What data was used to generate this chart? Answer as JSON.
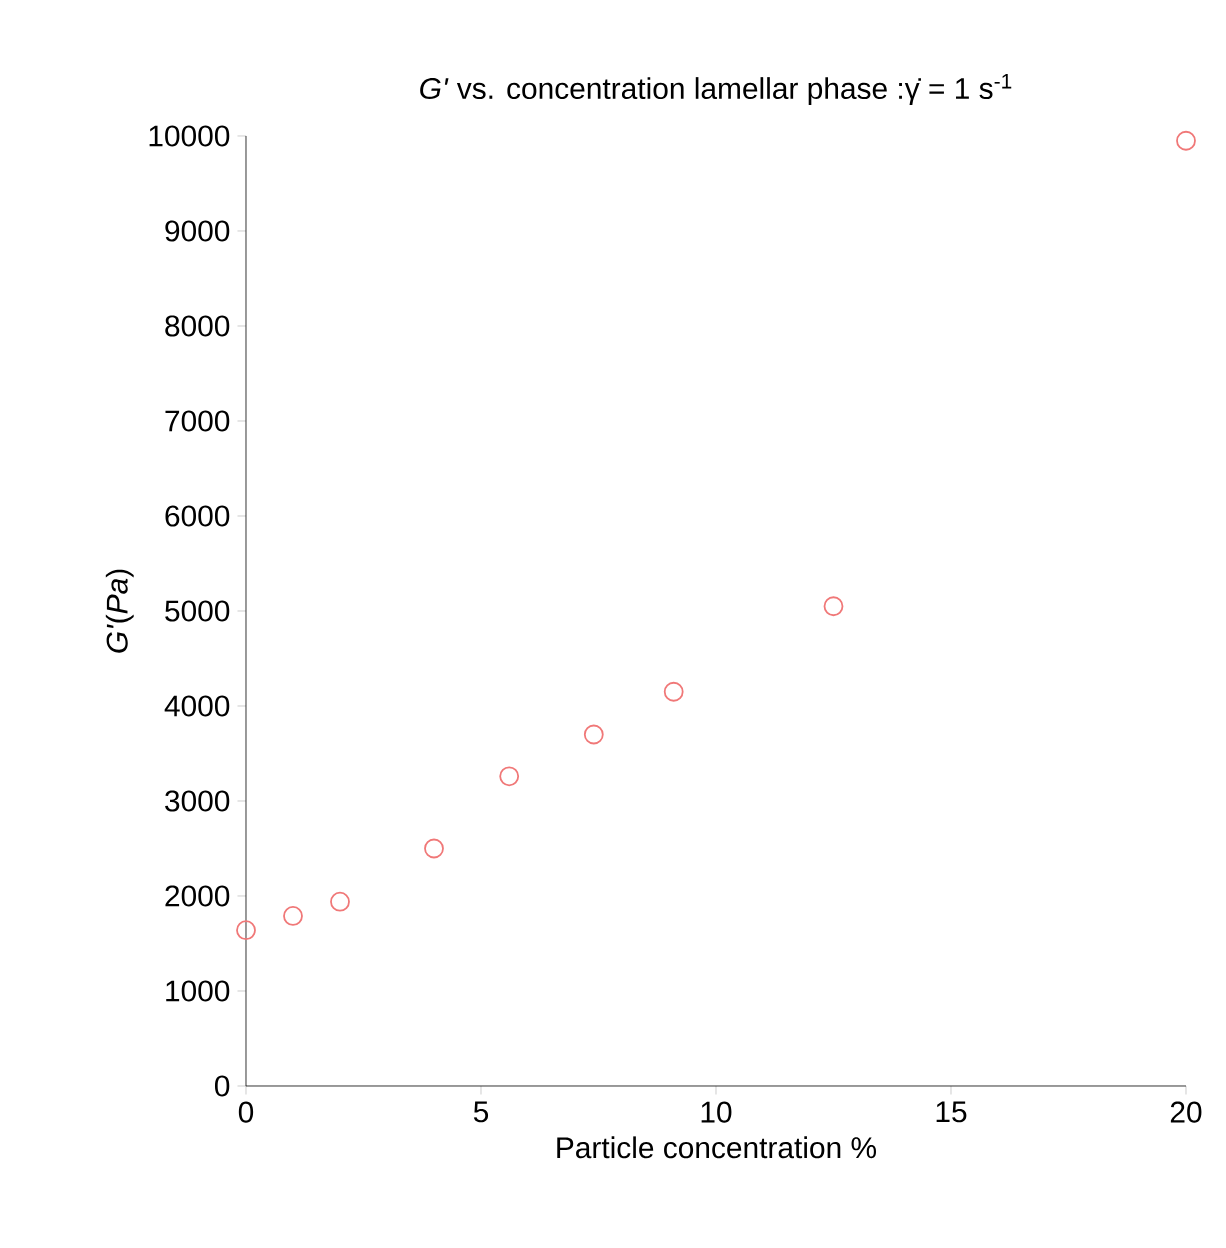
{
  "chart_data": {
    "type": "scatter",
    "title": "*G'* vs. concentration lamellar phase :γ̇ = 1 s$^{-1}$",
    "xlabel": "Particle concentration %",
    "ylabel": "*G'*(*Pa*)",
    "x": [
      0,
      1,
      2,
      4,
      5.6,
      7.4,
      9.1,
      12.5,
      20
    ],
    "values": [
      1640,
      1790,
      1940,
      2500,
      3260,
      3700,
      4150,
      5050,
      9950
    ],
    "color": "#f07878",
    "marker": "circle",
    "grid": false,
    "xlim": [
      0,
      20
    ],
    "xticks": [
      0,
      5,
      10,
      15,
      20
    ],
    "ylim": [
      0,
      10000
    ],
    "yticks": [
      0,
      1000,
      2000,
      3000,
      4000,
      5000,
      6000,
      7000,
      8000,
      9000,
      10000
    ]
  }
}
